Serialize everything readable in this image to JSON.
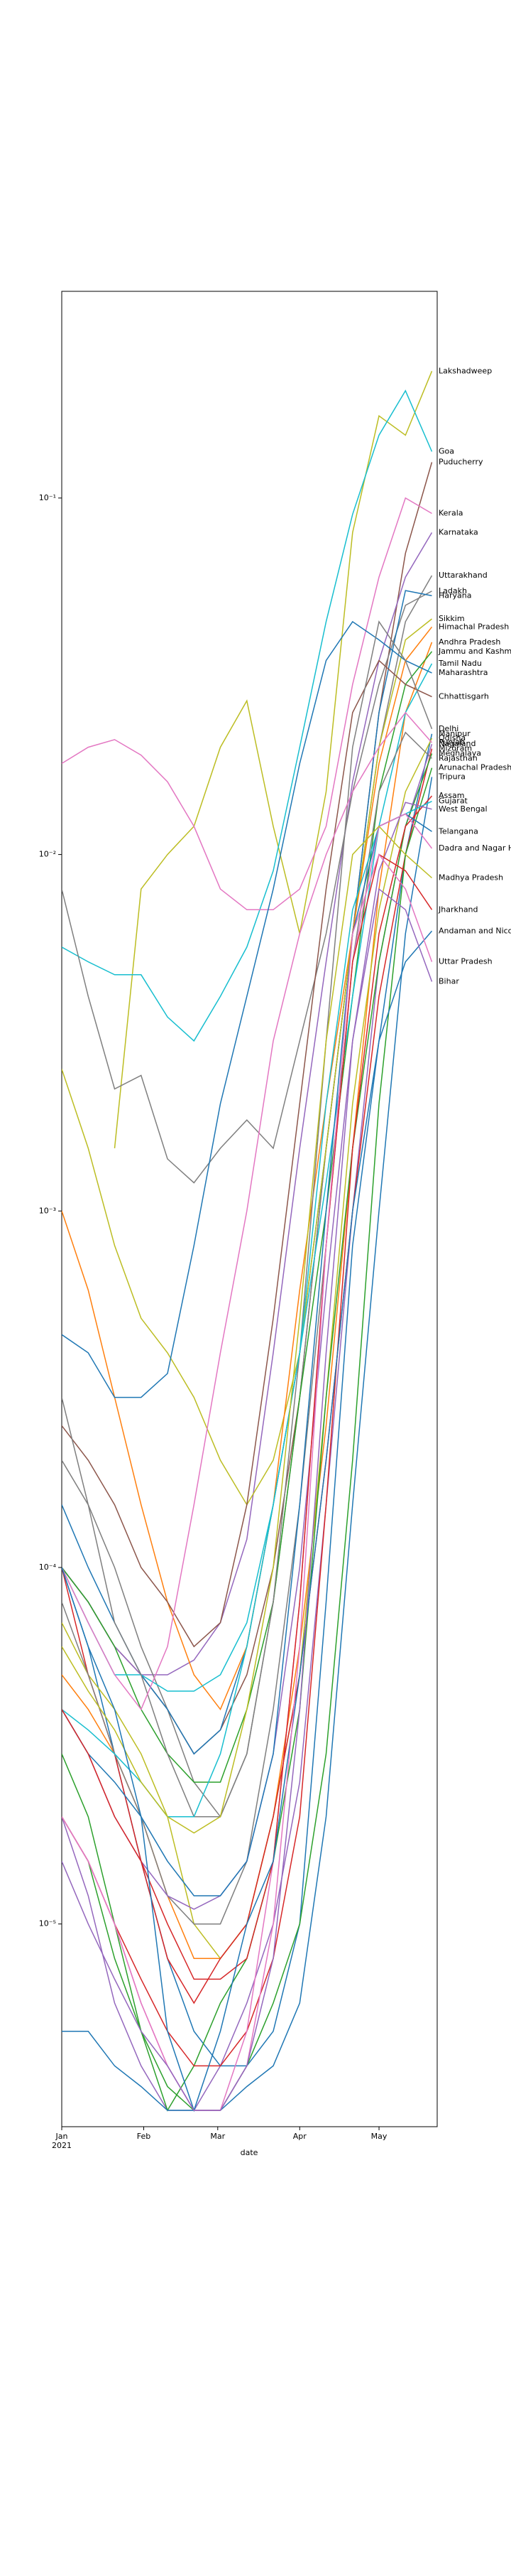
{
  "chart_data": {
    "type": "line",
    "xlabel": "date",
    "log_scale": true,
    "x": [
      "2021-01-01",
      "2021-01-11",
      "2021-01-21",
      "2021-01-31",
      "2021-02-10",
      "2021-02-20",
      "2021-03-02",
      "2021-03-12",
      "2021-03-22",
      "2021-04-01",
      "2021-04-11",
      "2021-04-21",
      "2021-05-01",
      "2021-05-11",
      "2021-05-21"
    ],
    "xlim": [
      "2021-01-01",
      "2021-05-23"
    ],
    "xticks": [
      {
        "value": "2021-01-01",
        "label": "Jan\n2021"
      },
      {
        "value": "2021-02-01",
        "label": "Feb"
      },
      {
        "value": "2021-03-01",
        "label": "Mar"
      },
      {
        "value": "2021-04-01",
        "label": "Apr"
      },
      {
        "value": "2021-05-01",
        "label": "May"
      }
    ],
    "ylim": [
      2.7e-06,
      0.38
    ],
    "yticks": [
      {
        "value": 0.1,
        "label": "10⁻¹"
      },
      {
        "value": 0.01,
        "label": "10⁻²"
      },
      {
        "value": 0.001,
        "label": "10⁻³"
      },
      {
        "value": 0.0001,
        "label": "10⁻⁴"
      },
      {
        "value": 1e-05,
        "label": "10⁻⁵"
      }
    ],
    "series": [
      {
        "name": "Lakshadweep",
        "color": "#bcbd22",
        "values": [
          null,
          null,
          0.0015,
          0.008,
          0.01,
          0.012,
          0.02,
          0.027,
          0.012,
          0.006,
          0.015,
          0.08,
          0.17,
          0.15,
          0.227
        ]
      },
      {
        "name": "Goa",
        "color": "#17becf",
        "values": [
          0.0055,
          0.005,
          0.0046,
          0.0046,
          0.0035,
          0.003,
          0.004,
          0.0055,
          0.009,
          0.02,
          0.045,
          0.09,
          0.15,
          0.2,
          0.135
        ]
      },
      {
        "name": "Puducherry",
        "color": "#8c564b",
        "values": [
          0.0001,
          8e-05,
          6e-05,
          5e-05,
          4e-05,
          3e-05,
          3.5e-05,
          5e-05,
          0.0001,
          0.0003,
          0.0015,
          0.006,
          0.025,
          0.07,
          0.126
        ]
      },
      {
        "name": "Kerala",
        "color": "#e377c2",
        "values": [
          0.018,
          0.02,
          0.021,
          0.019,
          0.016,
          0.012,
          0.008,
          0.007,
          0.007,
          0.008,
          0.012,
          0.03,
          0.06,
          0.1,
          0.0905
        ]
      },
      {
        "name": "Karnataka",
        "color": "#9467bd",
        "values": [
          0.0001,
          8e-05,
          6e-05,
          5e-05,
          5e-05,
          5.5e-05,
          7e-05,
          0.00012,
          0.0004,
          0.0015,
          0.005,
          0.016,
          0.035,
          0.06,
          0.08
        ]
      },
      {
        "name": "Uttarakhand",
        "color": "#7f7f7f",
        "values": [
          0.0002,
          0.00015,
          0.0001,
          6e-05,
          4e-05,
          2.5e-05,
          2e-05,
          3e-05,
          8e-05,
          0.0003,
          0.0015,
          0.006,
          0.02,
          0.045,
          0.0606
        ]
      },
      {
        "name": "Ladakh",
        "color": "#7f7f7f",
        "values": [
          0.008,
          0.004,
          0.0022,
          0.0024,
          0.0014,
          0.0012,
          0.0015,
          0.0018,
          0.0015,
          0.003,
          0.006,
          0.015,
          0.03,
          0.05,
          0.0548
        ]
      },
      {
        "name": "Haryana",
        "color": "#1f77b4",
        "values": [
          0.00015,
          0.0001,
          7e-05,
          5e-05,
          4e-05,
          3e-05,
          3.5e-05,
          6e-05,
          0.00015,
          0.0004,
          0.0015,
          0.006,
          0.025,
          0.055,
          0.0532
        ]
      },
      {
        "name": "Sikkim",
        "color": "#bcbd22",
        "values": [
          0.0025,
          0.0015,
          0.0008,
          0.0005,
          0.0004,
          0.0003,
          0.0002,
          0.00015,
          0.0002,
          0.0004,
          0.0015,
          0.006,
          0.02,
          0.04,
          0.0458
        ]
      },
      {
        "name": "Himachal Pradesh",
        "color": "#ff7f0e",
        "values": [
          0.001,
          0.0006,
          0.0003,
          0.00015,
          8e-05,
          5e-05,
          4e-05,
          6e-05,
          0.00015,
          0.0006,
          0.002,
          0.006,
          0.018,
          0.035,
          0.0435
        ]
      },
      {
        "name": "Andhra Pradesh",
        "color": "#ff7f0e",
        "values": [
          5e-05,
          4e-05,
          3e-05,
          2e-05,
          1.2e-05,
          8e-06,
          8e-06,
          1e-05,
          2e-05,
          6e-05,
          0.00025,
          0.0015,
          0.008,
          0.025,
          0.0394
        ]
      },
      {
        "name": "Jammu and Kashmir",
        "color": "#2ca02c",
        "values": [
          0.0001,
          8e-05,
          6e-05,
          4e-05,
          3e-05,
          2.5e-05,
          2.5e-05,
          4e-05,
          8e-05,
          0.0003,
          0.001,
          0.004,
          0.015,
          0.03,
          0.0371
        ]
      },
      {
        "name": "Tamil Nadu",
        "color": "#17becf",
        "values": [
          0.0001,
          7e-05,
          5e-05,
          5e-05,
          4.5e-05,
          4.5e-05,
          5e-05,
          7e-05,
          0.00015,
          0.0004,
          0.0012,
          0.004,
          0.012,
          0.025,
          0.0343
        ]
      },
      {
        "name": "Maharashtra",
        "color": "#1f77b4",
        "values": [
          0.00045,
          0.0004,
          0.0003,
          0.0003,
          0.00035,
          0.0008,
          0.002,
          0.004,
          0.008,
          0.018,
          0.035,
          0.045,
          0.04,
          0.035,
          0.0323
        ]
      },
      {
        "name": "Chhattisgarh",
        "color": "#8c564b",
        "values": [
          0.00025,
          0.0002,
          0.00015,
          0.0001,
          8e-05,
          6e-05,
          7e-05,
          0.00015,
          0.0005,
          0.002,
          0.008,
          0.025,
          0.035,
          0.03,
          0.0277
        ]
      },
      {
        "name": "Delhi",
        "color": "#7f7f7f",
        "values": [
          0.0003,
          0.00015,
          7e-05,
          5e-05,
          3e-05,
          2e-05,
          2e-05,
          3e-05,
          8e-05,
          0.0004,
          0.003,
          0.02,
          0.045,
          0.035,
          0.0225
        ]
      },
      {
        "name": "Manipur",
        "color": "#1f77b4",
        "values": [
          0.0001,
          6e-05,
          3e-05,
          1.5e-05,
          8e-06,
          5e-06,
          4e-06,
          4e-06,
          5e-06,
          1e-05,
          8e-05,
          0.0008,
          0.003,
          0.01,
          0.0218
        ]
      },
      {
        "name": "Odisha",
        "color": "#bcbd22",
        "values": [
          7e-05,
          5e-05,
          4e-05,
          3e-05,
          2e-05,
          1e-05,
          8e-06,
          1e-05,
          2e-05,
          5e-05,
          0.0003,
          0.002,
          0.007,
          0.015,
          0.0212
        ]
      },
      {
        "name": "Punjab",
        "color": "#e377c2",
        "values": [
          0.0001,
          7e-05,
          5e-05,
          4e-05,
          6e-05,
          0.00015,
          0.0004,
          0.001,
          0.003,
          0.006,
          0.01,
          0.015,
          0.02,
          0.025,
          0.0206
        ]
      },
      {
        "name": "Nagaland",
        "color": "#9467bd",
        "values": [
          2e-05,
          1.2e-05,
          6e-06,
          4e-06,
          3e-06,
          3e-06,
          4e-06,
          6e-06,
          1e-05,
          2.5e-05,
          0.00015,
          0.001,
          0.005,
          0.012,
          0.0204
        ]
      },
      {
        "name": "Mizoram",
        "color": "#d62728",
        "values": [
          0.0001,
          5e-05,
          3e-05,
          1.5e-05,
          8e-06,
          6e-06,
          8e-06,
          1e-05,
          2e-05,
          5e-05,
          0.0002,
          0.001,
          0.004,
          0.01,
          0.0198
        ]
      },
      {
        "name": "Meghalaya",
        "color": "#2ca02c",
        "values": [
          3e-05,
          2e-05,
          1e-05,
          5e-06,
          3e-06,
          4e-06,
          6e-06,
          8e-06,
          1.5e-05,
          4e-05,
          0.0003,
          0.0015,
          0.005,
          0.012,
          0.0192
        ]
      },
      {
        "name": "Rajasthan",
        "color": "#7f7f7f",
        "values": [
          8e-05,
          5e-05,
          3e-05,
          2e-05,
          1.2e-05,
          1e-05,
          1e-05,
          1.5e-05,
          4e-05,
          0.00015,
          0.0008,
          0.005,
          0.015,
          0.022,
          0.0186
        ]
      },
      {
        "name": "Arunachal Pradesh",
        "color": "#2ca02c",
        "values": [
          2e-05,
          1.5e-05,
          8e-06,
          5e-06,
          3.5e-06,
          3e-06,
          3e-06,
          4e-06,
          6e-06,
          1e-05,
          3e-05,
          0.0002,
          0.002,
          0.01,
          0.0175
        ]
      },
      {
        "name": "Tripura",
        "color": "#1f77b4",
        "values": [
          5e-06,
          5e-06,
          4e-06,
          3.5e-06,
          3e-06,
          3e-06,
          3e-06,
          3.5e-06,
          4e-06,
          6e-06,
          2e-05,
          0.00015,
          0.001,
          0.006,
          0.0165
        ]
      },
      {
        "name": "Assam",
        "color": "#d62728",
        "values": [
          2e-05,
          1.5e-05,
          1e-05,
          7e-06,
          5e-06,
          4e-06,
          4e-06,
          5e-06,
          8e-06,
          2e-05,
          0.00015,
          0.0015,
          0.006,
          0.012,
          0.0146
        ]
      },
      {
        "name": "Gujarat",
        "color": "#17becf",
        "values": [
          4e-05,
          3.5e-05,
          3e-05,
          2.5e-05,
          2e-05,
          2e-05,
          3e-05,
          6e-05,
          0.00015,
          0.0004,
          0.002,
          0.007,
          0.012,
          0.013,
          0.0141
        ]
      },
      {
        "name": "West Bengal",
        "color": "#9467bd",
        "values": [
          4e-05,
          3e-05,
          2e-05,
          1.5e-05,
          1.2e-05,
          1.1e-05,
          1.2e-05,
          1.5e-05,
          3e-05,
          0.0001,
          0.0006,
          0.003,
          0.009,
          0.014,
          0.0134
        ]
      },
      {
        "name": "Telangana",
        "color": "#1f77b4",
        "values": [
          4e-05,
          3e-05,
          2.5e-05,
          2e-05,
          1.5e-05,
          1.2e-05,
          1.2e-05,
          1.5e-05,
          3e-05,
          0.00015,
          0.001,
          0.006,
          0.012,
          0.013,
          0.0116
        ]
      },
      {
        "name": "Dadra and Nagar Haveli",
        "color": "#e377c2",
        "values": [
          2e-05,
          1.5e-05,
          1e-05,
          6e-06,
          4e-06,
          3e-06,
          3e-06,
          5e-06,
          1.5e-05,
          8e-05,
          0.0008,
          0.005,
          0.012,
          0.013,
          0.0104
        ]
      },
      {
        "name": "Madhya Pradesh",
        "color": "#bcbd22",
        "values": [
          6e-05,
          4.5e-05,
          3.5e-05,
          2.5e-05,
          2e-05,
          1.8e-05,
          2e-05,
          4e-05,
          0.0001,
          0.0005,
          0.003,
          0.01,
          0.012,
          0.01,
          0.0086
        ]
      },
      {
        "name": "Jharkhand",
        "color": "#d62728",
        "values": [
          4e-05,
          3e-05,
          2e-05,
          1.5e-05,
          1e-05,
          7e-06,
          7e-06,
          8e-06,
          1.5e-05,
          8e-05,
          0.0008,
          0.005,
          0.01,
          0.009,
          0.007
        ]
      },
      {
        "name": "Andaman and Nicobar Islands",
        "color": "#1f77b4",
        "values": [
          0.0001,
          6e-05,
          4e-05,
          2e-05,
          5e-06,
          3e-06,
          5e-06,
          1e-05,
          1.5e-05,
          5e-05,
          0.0002,
          0.001,
          0.003,
          0.005,
          0.0061
        ]
      },
      {
        "name": "Uttar Pradesh",
        "color": "#e377c2",
        "values": [
          2e-05,
          1.5e-05,
          1e-05,
          6e-06,
          4e-06,
          3e-06,
          3e-06,
          4e-06,
          1e-05,
          6e-05,
          0.0008,
          0.006,
          0.01,
          0.008,
          0.005
        ]
      },
      {
        "name": "Bihar",
        "color": "#9467bd",
        "values": [
          1.5e-05,
          1e-05,
          7e-06,
          5e-06,
          4e-06,
          3e-06,
          3e-06,
          4e-06,
          8e-06,
          4e-05,
          0.0004,
          0.003,
          0.008,
          0.007,
          0.0044
        ]
      }
    ]
  }
}
